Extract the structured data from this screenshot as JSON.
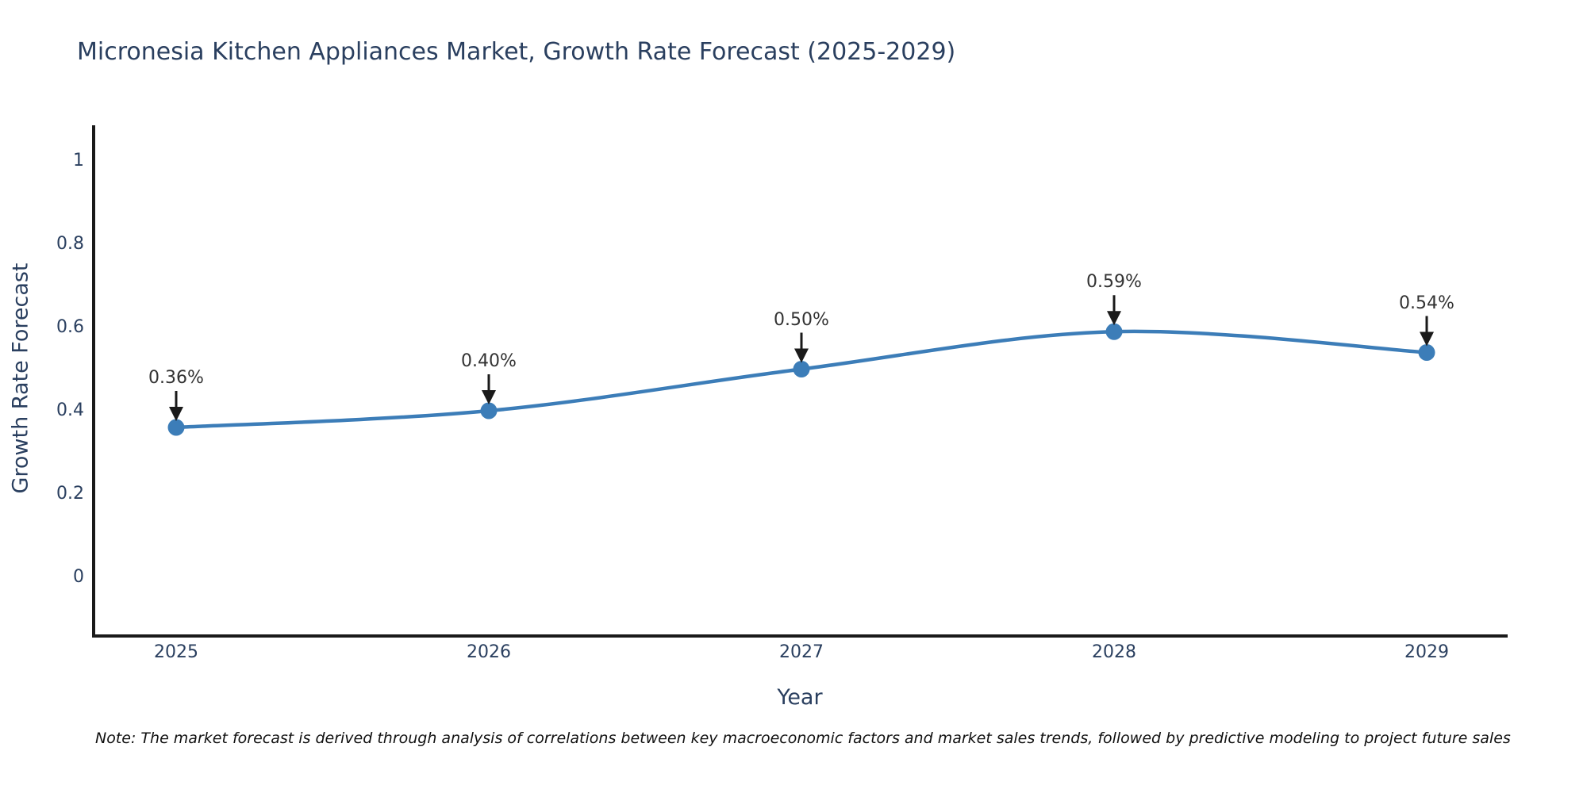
{
  "chart_data": {
    "type": "line",
    "title": "Micronesia Kitchen Appliances Market, Growth Rate Forecast (2025-2029)",
    "xlabel": "Year",
    "ylabel": "Growth Rate Forecast",
    "categories": [
      "2025",
      "2026",
      "2027",
      "2028",
      "2029"
    ],
    "series": [
      {
        "name": "Growth Rate Forecast",
        "values": [
          0.36,
          0.4,
          0.5,
          0.59,
          0.54
        ],
        "point_labels": [
          "0.36%",
          "0.40%",
          "0.50%",
          "0.59%",
          "0.54%"
        ]
      }
    ],
    "ytick_labels": [
      "0",
      "0.2",
      "0.4",
      "0.6",
      "0.8",
      "1"
    ],
    "ytick_values": [
      0,
      0.2,
      0.4,
      0.6,
      0.8,
      1
    ],
    "ylim": [
      -0.141,
      1.082
    ],
    "grid": false,
    "legend_position": "none",
    "line_shape": "spline",
    "annotation_arrows": true,
    "colors": {
      "line": "#3c7db8",
      "marker": "#3c7db8",
      "axis": "#1a1a1a",
      "arrow": "#1a1a1a",
      "title_text": "#2a3f5f",
      "tick_text": "#2a3f5f",
      "annotation_text": "#333333",
      "note_text": "#111111",
      "background": "#ffffff"
    }
  },
  "footnote": "Note: The market forecast is derived through analysis of correlations between key macroeconomic factors and market sales trends, followed by predictive modeling to project future sales"
}
